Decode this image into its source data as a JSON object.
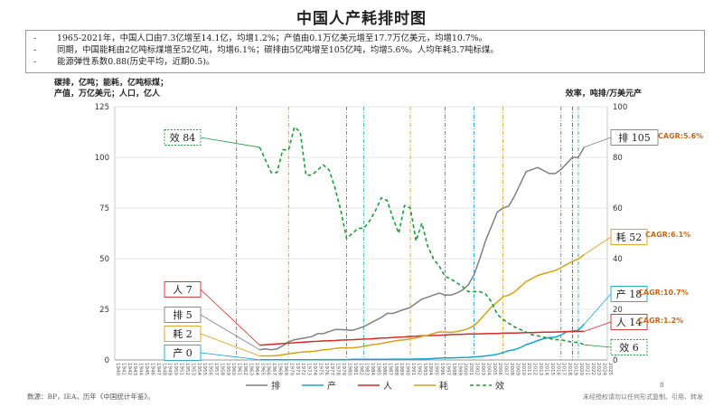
{
  "page": {
    "title": "中国人产耗排时图",
    "summary": [
      "1965-2021年，中国人口由7.3亿增至14.1亿，均增1.2%；产值由0.1万亿美元增至17.7万亿美元，均增10.7%。",
      "同期，中国能耗由2亿吨标煤增至52亿吨，均增6.1%；碳排由5亿吨增至105亿吨，均增5.6%。人均年耗3.7吨标煤。",
      "能源弹性系数0.88(历史平均，近期0.5)。"
    ],
    "bullet_mark": "-",
    "left_note": [
      "碳排，亿吨；能耗，亿吨标煤；",
      "产值，万亿美元；人口，亿人"
    ],
    "right_note": "效率，吨排/万美元产",
    "source": "数源：BP，IEA，历年《中国统计年鉴》。",
    "copyright": "未经授权请勿以任何形式复制、引用、转发",
    "page_number": "8"
  },
  "colors": {
    "emission": "#808080",
    "gdp": "#1aa3d1",
    "population": "#d42b2b",
    "energy": "#d4a21a",
    "efficiency": "#1f9a3a",
    "cagr": "#c06a1a"
  },
  "chart_data": {
    "type": "line",
    "x": [
      1965,
      1966,
      1967,
      1968,
      1969,
      1970,
      1971,
      1972,
      1973,
      1974,
      1975,
      1976,
      1977,
      1978,
      1979,
      1980,
      1981,
      1982,
      1983,
      1984,
      1985,
      1986,
      1987,
      1988,
      1989,
      1990,
      1991,
      1992,
      1993,
      1994,
      1995,
      1996,
      1997,
      1998,
      1999,
      2000,
      2001,
      2002,
      2003,
      2004,
      2005,
      2006,
      2007,
      2008,
      2009,
      2010,
      2011,
      2012,
      2013,
      2014,
      2015,
      2016,
      2017,
      2018,
      2019,
      2020,
      2021
    ],
    "x_tick_labels": [
      "1940",
      "1941",
      "1942",
      "1943",
      "1944",
      "1945",
      "1946",
      "1947",
      "1948",
      "1949",
      "1950",
      "1951",
      "1952",
      "1953",
      "1954",
      "1955",
      "1956",
      "1957",
      "1958",
      "1959",
      "1960",
      "1961",
      "1962",
      "1963",
      "1964",
      "1965",
      "1966",
      "1967",
      "1968",
      "1969",
      "1970",
      "1971",
      "1972",
      "1973",
      "1974",
      "1975",
      "1976",
      "1977",
      "1978",
      "1979",
      "1980",
      "1981",
      "1982",
      "1983",
      "1984",
      "1985",
      "1986",
      "1987",
      "1988",
      "1989",
      "1990",
      "1991",
      "1992",
      "1993",
      "1994",
      "1995",
      "1996",
      "1997",
      "1998",
      "1999",
      "2000",
      "2001",
      "2002",
      "2003",
      "2004",
      "2005",
      "2006",
      "2007",
      "2008",
      "2009",
      "2010",
      "2011",
      "2012",
      "2013",
      "2014",
      "2015",
      "2016",
      "2017",
      "2018",
      "2019",
      "2020",
      "2021",
      "2022",
      "2023",
      "2024",
      "2025"
    ],
    "xlim": [
      1940,
      2025
    ],
    "ylim_left": [
      0,
      125
    ],
    "yticks_left": [
      0,
      25,
      50,
      75,
      100,
      125
    ],
    "ylim_right": [
      0,
      100
    ],
    "yticks_right": [
      0,
      20,
      40,
      60,
      80,
      100
    ],
    "series": [
      {
        "name": "排",
        "axis": "left",
        "style": "solid",
        "values": [
          5,
          5.5,
          5,
          5.5,
          7,
          9,
          10,
          10.5,
          11,
          11.5,
          13,
          13,
          14,
          15,
          15,
          14.8,
          14.6,
          15.5,
          16.5,
          18,
          19.5,
          21,
          23,
          23,
          24,
          25,
          26,
          28,
          30,
          31,
          32,
          33,
          32,
          32,
          33,
          34.5,
          37,
          42,
          50,
          59,
          66,
          73,
          75,
          76,
          81,
          87,
          93,
          94,
          95,
          93.5,
          92,
          92,
          94,
          97,
          100,
          100,
          105
        ]
      },
      {
        "name": "产",
        "axis": "left",
        "style": "solid",
        "values": [
          0.1,
          0.1,
          0.1,
          0.1,
          0.1,
          0.1,
          0.1,
          0.1,
          0.1,
          0.1,
          0.2,
          0.2,
          0.2,
          0.2,
          0.2,
          0.2,
          0.3,
          0.3,
          0.3,
          0.3,
          0.3,
          0.3,
          0.3,
          0.4,
          0.4,
          0.4,
          0.4,
          0.5,
          0.5,
          0.6,
          0.7,
          0.9,
          1.0,
          1.0,
          1.1,
          1.2,
          1.3,
          1.5,
          1.7,
          2.0,
          2.3,
          2.8,
          3.6,
          4.6,
          5.1,
          6.1,
          7.6,
          8.5,
          9.6,
          10.5,
          11.1,
          11.2,
          12.3,
          13.9,
          14.3,
          14.7,
          17.7
        ]
      },
      {
        "name": "人",
        "axis": "left",
        "style": "solid",
        "values": [
          7.3,
          7.5,
          7.7,
          7.9,
          8.1,
          8.3,
          8.5,
          8.7,
          8.9,
          9.1,
          9.2,
          9.4,
          9.5,
          9.6,
          9.8,
          9.9,
          10.0,
          10.2,
          10.3,
          10.4,
          10.6,
          10.8,
          10.9,
          11.1,
          11.3,
          11.4,
          11.6,
          11.7,
          11.9,
          12.0,
          12.1,
          12.2,
          12.4,
          12.5,
          12.6,
          12.7,
          12.8,
          12.8,
          12.9,
          13.0,
          13.1,
          13.1,
          13.2,
          13.3,
          13.3,
          13.4,
          13.5,
          13.5,
          13.6,
          13.7,
          13.7,
          13.8,
          13.9,
          14.0,
          14.0,
          14.1,
          14.1
        ]
      },
      {
        "name": "耗",
        "axis": "left",
        "style": "solid",
        "values": [
          2,
          2,
          2,
          2.2,
          2.6,
          3,
          3.5,
          3.8,
          4,
          4.2,
          4.5,
          5,
          5.2,
          5.7,
          6,
          6,
          6,
          6.3,
          6.7,
          7.3,
          7.7,
          8.1,
          8.7,
          9.2,
          9.7,
          9.9,
          10.4,
          10.9,
          11.6,
          12.2,
          13.1,
          13.9,
          13.8,
          13.6,
          14,
          14.6,
          15.5,
          16.9,
          19.7,
          23,
          26.1,
          28.6,
          31.1,
          32,
          33.6,
          36.1,
          38.7,
          40.2,
          41.7,
          42.6,
          43.4,
          44.1,
          45.6,
          47.2,
          48.7,
          49.8,
          52
        ]
      },
      {
        "name": "效",
        "axis": "right",
        "style": "dashed",
        "values": [
          84,
          79,
          74,
          74,
          83,
          83,
          92,
          90,
          73,
          73,
          75,
          77,
          75,
          68,
          59,
          48,
          50,
          52,
          52,
          55,
          59,
          64,
          63,
          56,
          50,
          61,
          60,
          47,
          54,
          45,
          40,
          37,
          33,
          32,
          30.5,
          29,
          27,
          27,
          27,
          26,
          23,
          18,
          16,
          14.5,
          13,
          12,
          11,
          10,
          9.5,
          9,
          8.5,
          8,
          8,
          7.5,
          7,
          7,
          6
        ]
      }
    ],
    "vlines": [
      {
        "year": 1961,
        "color": "#7a7a7a"
      },
      {
        "year": 1970,
        "color": "#d4a21a"
      },
      {
        "year": 1980,
        "color": "#7a7a7a"
      },
      {
        "year": 1983,
        "color": "#1aa3d1"
      },
      {
        "year": 1991,
        "color": "#d4a21a"
      },
      {
        "year": 1997,
        "color": "#7a7a7a"
      },
      {
        "year": 2002,
        "color": "#1aa3d1"
      },
      {
        "year": 2007,
        "color": "#d4a21a"
      },
      {
        "year": 2017,
        "color": "#7a7a7a"
      },
      {
        "year": 2019,
        "color": "#d42b2b"
      },
      {
        "year": 2020,
        "color": "#1aa3d1"
      }
    ],
    "callouts": [
      {
        "series": "效",
        "label": "效 84",
        "side": "left",
        "color": "#1f9a3a"
      },
      {
        "series": "人",
        "label": "人 7",
        "side": "left",
        "color": "#d42b2b"
      },
      {
        "series": "排",
        "label": "排 5",
        "side": "left",
        "color": "#808080"
      },
      {
        "series": "耗",
        "label": "耗 2",
        "side": "left",
        "color": "#d4a21a"
      },
      {
        "series": "产",
        "label": "产 0",
        "side": "left",
        "color": "#1aa3d1"
      },
      {
        "series": "排",
        "label": "排 105",
        "side": "right",
        "color": "#808080"
      },
      {
        "series": "耗",
        "label": "耗 52",
        "side": "right",
        "color": "#d4a21a"
      },
      {
        "series": "产",
        "label": "产 18",
        "side": "right",
        "color": "#1aa3d1"
      },
      {
        "series": "人",
        "label": "人 14",
        "side": "right",
        "color": "#d42b2b"
      },
      {
        "series": "效",
        "label": "效 6",
        "side": "right",
        "color": "#1f9a3a"
      }
    ],
    "cagr_labels": [
      {
        "series": "排",
        "text": "CAGR:5.6%"
      },
      {
        "series": "耗",
        "text": "CAGR:6.1%"
      },
      {
        "series": "产",
        "text": "CAGR:10.7%"
      },
      {
        "series": "人",
        "text": "CAGR:1.2%"
      }
    ],
    "legend": {
      "position": "bottom",
      "entries": [
        "排",
        "产",
        "人",
        "耗",
        "效"
      ]
    },
    "grid": "horizontal"
  }
}
